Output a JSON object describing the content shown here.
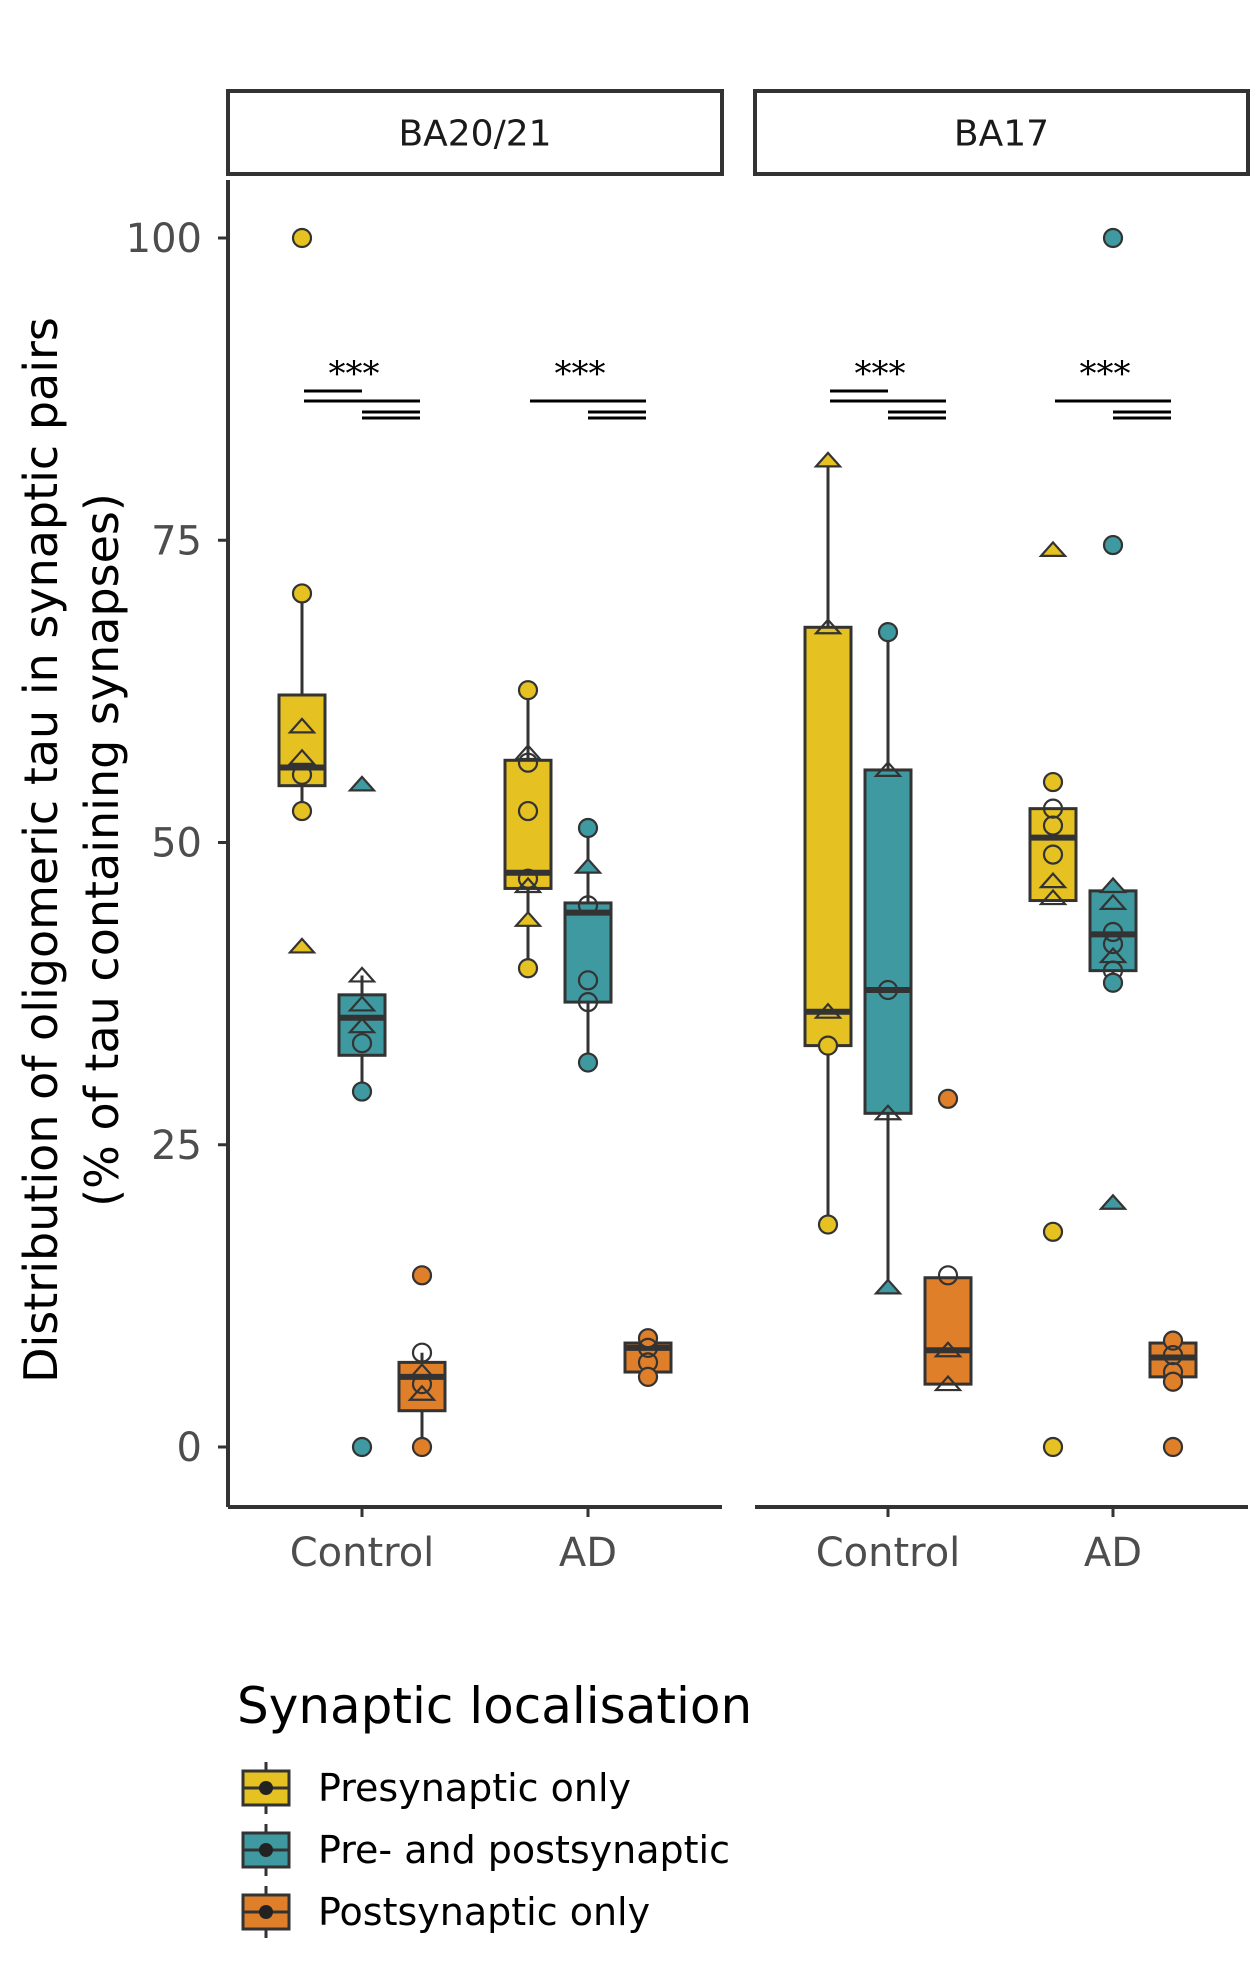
{
  "chart_data": {
    "type": "boxplot",
    "ylabel_line1": "Distribution of oligomeric tau in synaptic pairs",
    "ylabel_line2": "(% of tau containing synapses)",
    "ylim": [
      0,
      100
    ],
    "yticks": [
      0,
      25,
      50,
      75,
      100
    ],
    "categories": [
      "Control",
      "AD"
    ],
    "legend": {
      "title": "Synaptic localisation",
      "entries": [
        {
          "name": "Presynaptic only",
          "color": "#E5C121"
        },
        {
          "name": "Pre- and postsynaptic",
          "color": "#3E99A0"
        },
        {
          "name": "Postsynaptic only",
          "color": "#E07F2A"
        }
      ]
    },
    "significance_label": "***",
    "panels": [
      {
        "strip": "BA20/21",
        "groups": [
          {
            "category": "Control",
            "boxes": [
              {
                "series": "Presynaptic only",
                "q1": 54.7,
                "median": 56.2,
                "q3": 62.2,
                "lower": 52.6,
                "upper": 70.6,
                "points": [
                  {
                    "y": 100,
                    "shape": "circle",
                    "filled": true
                  },
                  {
                    "y": 70.6,
                    "shape": "circle",
                    "filled": true
                  },
                  {
                    "y": 59.6,
                    "shape": "triangle",
                    "filled": false
                  },
                  {
                    "y": 57.0,
                    "shape": "triangle",
                    "filled": false
                  },
                  {
                    "y": 55.6,
                    "shape": "circle",
                    "filled": false
                  },
                  {
                    "y": 52.6,
                    "shape": "circle",
                    "filled": true
                  },
                  {
                    "y": 41.4,
                    "shape": "triangle",
                    "filled": true
                  }
                ]
              },
              {
                "series": "Pre- and postsynaptic",
                "q1": 32.4,
                "median": 35.5,
                "q3": 37.4,
                "lower": 29.4,
                "upper": 39.0,
                "points": [
                  {
                    "y": 54.8,
                    "shape": "triangle",
                    "filled": true
                  },
                  {
                    "y": 39.0,
                    "shape": "triangle",
                    "filled": false
                  },
                  {
                    "y": 36.6,
                    "shape": "triangle",
                    "filled": false
                  },
                  {
                    "y": 34.8,
                    "shape": "triangle",
                    "filled": false
                  },
                  {
                    "y": 33.4,
                    "shape": "circle",
                    "filled": false
                  },
                  {
                    "y": 29.4,
                    "shape": "circle",
                    "filled": true
                  },
                  {
                    "y": 0,
                    "shape": "circle",
                    "filled": true
                  }
                ]
              },
              {
                "series": "Postsynaptic only",
                "q1": 3.0,
                "median": 5.8,
                "q3": 7.0,
                "lower": 0,
                "upper": 7.8,
                "points": [
                  {
                    "y": 14.2,
                    "shape": "circle",
                    "filled": true
                  },
                  {
                    "y": 7.8,
                    "shape": "circle",
                    "filled": false
                  },
                  {
                    "y": 6.2,
                    "shape": "triangle",
                    "filled": false
                  },
                  {
                    "y": 5.2,
                    "shape": "circle",
                    "filled": false
                  },
                  {
                    "y": 4.4,
                    "shape": "triangle",
                    "filled": false
                  },
                  {
                    "y": 0,
                    "shape": "circle",
                    "filled": true
                  }
                ]
              }
            ]
          },
          {
            "category": "AD",
            "boxes": [
              {
                "series": "Presynaptic only",
                "q1": 46.2,
                "median": 47.5,
                "q3": 56.8,
                "lower": 39.6,
                "upper": 62.6,
                "points": [
                  {
                    "y": 62.6,
                    "shape": "circle",
                    "filled": true
                  },
                  {
                    "y": 57.4,
                    "shape": "triangle",
                    "filled": false
                  },
                  {
                    "y": 56.6,
                    "shape": "circle",
                    "filled": false
                  },
                  {
                    "y": 52.6,
                    "shape": "circle",
                    "filled": false
                  },
                  {
                    "y": 47.0,
                    "shape": "circle",
                    "filled": false
                  },
                  {
                    "y": 46.4,
                    "shape": "triangle",
                    "filled": false
                  },
                  {
                    "y": 43.6,
                    "shape": "triangle",
                    "filled": true
                  },
                  {
                    "y": 39.6,
                    "shape": "circle",
                    "filled": true
                  }
                ]
              },
              {
                "series": "Pre- and postsynaptic",
                "q1": 36.8,
                "median": 44.2,
                "q3": 45.0,
                "lower": 31.8,
                "upper": 51.2,
                "points": [
                  {
                    "y": 51.2,
                    "shape": "circle",
                    "filled": true
                  },
                  {
                    "y": 48.0,
                    "shape": "triangle",
                    "filled": true
                  },
                  {
                    "y": 44.8,
                    "shape": "circle",
                    "filled": false
                  },
                  {
                    "y": 38.6,
                    "shape": "circle",
                    "filled": false
                  },
                  {
                    "y": 36.8,
                    "shape": "circle",
                    "filled": false
                  },
                  {
                    "y": 31.8,
                    "shape": "circle",
                    "filled": true
                  }
                ]
              },
              {
                "series": "Postsynaptic only",
                "q1": 6.2,
                "median": 8.2,
                "q3": 8.6,
                "lower": 5.6,
                "upper": 9.0,
                "points": [
                  {
                    "y": 9.0,
                    "shape": "circle",
                    "filled": true
                  },
                  {
                    "y": 8.2,
                    "shape": "circle",
                    "filled": false
                  },
                  {
                    "y": 7.0,
                    "shape": "circle",
                    "filled": false
                  },
                  {
                    "y": 5.8,
                    "shape": "circle",
                    "filled": true
                  }
                ]
              }
            ]
          }
        ]
      },
      {
        "strip": "BA17",
        "groups": [
          {
            "category": "Control",
            "boxes": [
              {
                "series": "Presynaptic only",
                "q1": 33.2,
                "median": 36.0,
                "q3": 67.8,
                "lower": 18.4,
                "upper": 81.6,
                "points": [
                  {
                    "y": 81.6,
                    "shape": "triangle",
                    "filled": true
                  },
                  {
                    "y": 67.8,
                    "shape": "triangle",
                    "filled": false
                  },
                  {
                    "y": 36.0,
                    "shape": "triangle",
                    "filled": false
                  },
                  {
                    "y": 33.2,
                    "shape": "circle",
                    "filled": true
                  },
                  {
                    "y": 18.4,
                    "shape": "circle",
                    "filled": true
                  }
                ]
              },
              {
                "series": "Pre- and postsynaptic",
                "q1": 27.6,
                "median": 37.8,
                "q3": 56.0,
                "lower": 13.2,
                "upper": 67.4,
                "points": [
                  {
                    "y": 67.4,
                    "shape": "circle",
                    "filled": true
                  },
                  {
                    "y": 56.0,
                    "shape": "triangle",
                    "filled": false
                  },
                  {
                    "y": 37.8,
                    "shape": "circle",
                    "filled": false
                  },
                  {
                    "y": 27.6,
                    "shape": "triangle",
                    "filled": false
                  },
                  {
                    "y": 13.2,
                    "shape": "triangle",
                    "filled": true
                  }
                ]
              },
              {
                "series": "Postsynaptic only",
                "q1": 5.2,
                "median": 8.0,
                "q3": 14.0,
                "lower": 5.2,
                "upper": 14.0,
                "points": [
                  {
                    "y": 28.8,
                    "shape": "circle",
                    "filled": true
                  },
                  {
                    "y": 14.2,
                    "shape": "circle",
                    "filled": false
                  },
                  {
                    "y": 8.0,
                    "shape": "triangle",
                    "filled": false
                  },
                  {
                    "y": 5.2,
                    "shape": "triangle",
                    "filled": false
                  }
                ]
              }
            ]
          },
          {
            "category": "AD",
            "boxes": [
              {
                "series": "Presynaptic only",
                "q1": 45.2,
                "median": 50.4,
                "q3": 52.8,
                "lower": 45.2,
                "upper": 52.8,
                "points": [
                  {
                    "y": 74.2,
                    "shape": "triangle",
                    "filled": true
                  },
                  {
                    "y": 55.0,
                    "shape": "circle",
                    "filled": true
                  },
                  {
                    "y": 52.8,
                    "shape": "circle",
                    "filled": false
                  },
                  {
                    "y": 51.4,
                    "shape": "circle",
                    "filled": false
                  },
                  {
                    "y": 49.0,
                    "shape": "circle",
                    "filled": false
                  },
                  {
                    "y": 46.8,
                    "shape": "triangle",
                    "filled": false
                  },
                  {
                    "y": 45.4,
                    "shape": "triangle",
                    "filled": false
                  },
                  {
                    "y": 17.8,
                    "shape": "circle",
                    "filled": true
                  },
                  {
                    "y": 0,
                    "shape": "circle",
                    "filled": true
                  }
                ]
              },
              {
                "series": "Pre- and postsynaptic",
                "q1": 39.4,
                "median": 42.4,
                "q3": 46.0,
                "lower": 38.6,
                "upper": 46.4,
                "points": [
                  {
                    "y": 100,
                    "shape": "circle",
                    "filled": true
                  },
                  {
                    "y": 74.6,
                    "shape": "circle",
                    "filled": true
                  },
                  {
                    "y": 46.4,
                    "shape": "triangle",
                    "filled": true
                  },
                  {
                    "y": 45.0,
                    "shape": "triangle",
                    "filled": false
                  },
                  {
                    "y": 42.6,
                    "shape": "circle",
                    "filled": false
                  },
                  {
                    "y": 41.6,
                    "shape": "circle",
                    "filled": false
                  },
                  {
                    "y": 40.6,
                    "shape": "triangle",
                    "filled": false
                  },
                  {
                    "y": 39.4,
                    "shape": "circle",
                    "filled": false
                  },
                  {
                    "y": 38.4,
                    "shape": "circle",
                    "filled": true
                  },
                  {
                    "y": 20.2,
                    "shape": "triangle",
                    "filled": true
                  }
                ]
              },
              {
                "series": "Postsynaptic only",
                "q1": 5.8,
                "median": 7.4,
                "q3": 8.6,
                "lower": 5.4,
                "upper": 9.0,
                "points": [
                  {
                    "y": 8.8,
                    "shape": "circle",
                    "filled": true
                  },
                  {
                    "y": 7.6,
                    "shape": "circle",
                    "filled": false
                  },
                  {
                    "y": 6.2,
                    "shape": "circle",
                    "filled": false
                  },
                  {
                    "y": 5.4,
                    "shape": "circle",
                    "filled": true
                  },
                  {
                    "y": 0,
                    "shape": "circle",
                    "filled": true
                  }
                ]
              }
            ]
          }
        ]
      }
    ]
  }
}
